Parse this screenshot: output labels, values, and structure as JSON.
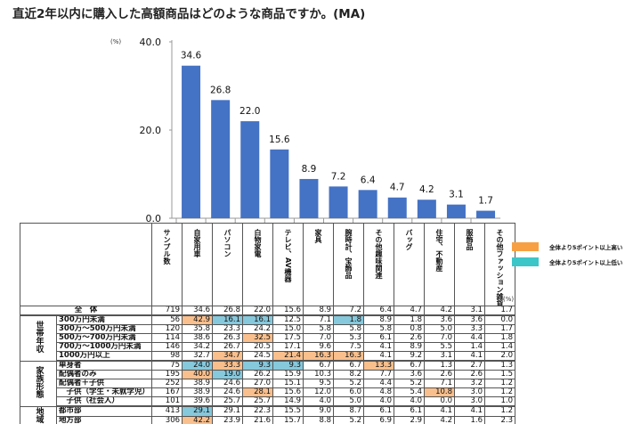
{
  "title": "直近2年以内に購入した高額商品はどのような商品ですか。(MA)",
  "unit": "(%)",
  "colors": {
    "bar": "#4472c4",
    "higher": "#f7a043",
    "lower": "#3cc6c8",
    "cell_higher": "#f9bf8c",
    "cell_lower": "#86c8dc"
  },
  "legend": [
    {
      "label": "全体より5ポイント以上高い",
      "color": "#f7a043"
    },
    {
      "label": "全体より5ポイント以上低い",
      "color": "#3cc6c8"
    }
  ],
  "chart_data": {
    "type": "bar",
    "categories": [
      "自家用車",
      "パソコン",
      "白物家電",
      "テレビ、AV機器",
      "家具",
      "腕時計、宝飾品",
      "その他趣味関連",
      "バッグ",
      "住宅、不動産",
      "服飾品",
      "その他ファッション雑貨"
    ],
    "values": [
      34.6,
      26.8,
      22.0,
      15.6,
      8.9,
      7.2,
      6.4,
      4.7,
      4.2,
      3.1,
      1.7
    ],
    "ylim": [
      0,
      40
    ],
    "yticks": [
      "0.0",
      "20.0",
      "40.0"
    ],
    "data_labels": [
      "34.6",
      "26.8",
      "22.0",
      "15.6",
      "8.9",
      "7.2",
      "6.4",
      "4.7",
      "4.2",
      "3.1",
      "1.7"
    ]
  },
  "table": {
    "sample_header": "サンプル数",
    "total": {
      "label": "全　体",
      "n": "719",
      "values": [
        "34.6",
        "26.8",
        "22.0",
        "15.6",
        "8.9",
        "7.2",
        "6.4",
        "4.7",
        "4.2",
        "3.1",
        "1.7"
      ]
    },
    "groups": [
      {
        "label": "世帯年収",
        "rows": [
          {
            "label": "300万円未満",
            "n": "56",
            "values": [
              "42.9",
              "16.1",
              "16.1",
              "12.5",
              "7.1",
              "1.8",
              "8.9",
              "1.8",
              "3.6",
              "3.6",
              "0.0"
            ],
            "hl": [
              "o",
              "b",
              "b",
              "",
              "",
              "b",
              "",
              "",
              "",
              "",
              ""
            ]
          },
          {
            "label": "300万～500万円未満",
            "n": "120",
            "values": [
              "35.8",
              "23.3",
              "24.2",
              "15.0",
              "5.8",
              "5.8",
              "5.8",
              "0.8",
              "5.0",
              "3.3",
              "1.7"
            ],
            "hl": [
              "",
              "",
              "",
              "",
              "",
              "",
              "",
              "",
              "",
              "",
              ""
            ]
          },
          {
            "label": "500万～700万円未満",
            "n": "114",
            "values": [
              "38.6",
              "26.3",
              "32.5",
              "17.5",
              "7.0",
              "5.3",
              "6.1",
              "2.6",
              "7.0",
              "4.4",
              "1.8"
            ],
            "hl": [
              "",
              "",
              "o",
              "",
              "",
              "",
              "",
              "",
              "",
              "",
              ""
            ]
          },
          {
            "label": "700万～1000万円未満",
            "n": "146",
            "values": [
              "34.2",
              "26.7",
              "20.5",
              "17.1",
              "9.6",
              "7.5",
              "4.1",
              "8.9",
              "5.5",
              "1.4",
              "1.4"
            ],
            "hl": [
              "",
              "",
              "",
              "",
              "",
              "",
              "",
              "",
              "",
              "",
              ""
            ]
          },
          {
            "label": "1000万円以上",
            "n": "98",
            "values": [
              "32.7",
              "34.7",
              "24.5",
              "21.4",
              "16.3",
              "16.3",
              "4.1",
              "9.2",
              "3.1",
              "4.1",
              "2.0"
            ],
            "hl": [
              "",
              "o",
              "",
              "o",
              "o",
              "o",
              "",
              "",
              "",
              "",
              ""
            ]
          }
        ]
      },
      {
        "label": "家族形態",
        "rows": [
          {
            "label": "単身者",
            "n": "75",
            "values": [
              "24.0",
              "33.3",
              "9.3",
              "9.3",
              "6.7",
              "6.7",
              "13.3",
              "6.7",
              "1.3",
              "2.7",
              "1.3"
            ],
            "hl": [
              "b",
              "o",
              "b",
              "b",
              "",
              "",
              "o",
              "",
              "",
              "",
              ""
            ]
          },
          {
            "label": "配偶者のみ",
            "n": "195",
            "values": [
              "40.0",
              "19.0",
              "26.2",
              "15.9",
              "10.3",
              "8.2",
              "7.7",
              "3.6",
              "2.6",
              "2.6",
              "1.5"
            ],
            "hl": [
              "o",
              "b",
              "",
              "",
              "",
              "",
              "",
              "",
              "",
              "",
              ""
            ]
          },
          {
            "label": "配偶者＋子供",
            "n": "252",
            "values": [
              "38.9",
              "24.6",
              "27.0",
              "15.1",
              "9.5",
              "5.2",
              "4.4",
              "5.2",
              "7.1",
              "3.2",
              "1.2"
            ],
            "hl": [
              "",
              "",
              "",
              "",
              "",
              "",
              "",
              "",
              "",
              "",
              ""
            ]
          },
          {
            "label": "　子供（学生・未就学児）",
            "n": "167",
            "values": [
              "38.9",
              "24.6",
              "28.1",
              "15.6",
              "12.0",
              "6.0",
              "4.8",
              "5.4",
              "10.8",
              "3.0",
              "1.2"
            ],
            "hl": [
              "",
              "",
              "o",
              "",
              "",
              "",
              "",
              "",
              "o",
              "",
              ""
            ]
          },
          {
            "label": "　子供（社会人）",
            "n": "101",
            "values": [
              "39.6",
              "25.7",
              "25.7",
              "14.9",
              "4.0",
              "5.0",
              "4.0",
              "4.0",
              "0.0",
              "3.0",
              "1.0"
            ],
            "hl": [
              "",
              "",
              "",
              "",
              "",
              "",
              "",
              "",
              "",
              "",
              ""
            ]
          }
        ]
      },
      {
        "label": "地域",
        "rows": [
          {
            "label": "都市部",
            "n": "413",
            "values": [
              "29.1",
              "29.1",
              "22.3",
              "15.5",
              "9.0",
              "8.7",
              "6.1",
              "6.1",
              "4.1",
              "4.1",
              "1.2"
            ],
            "hl": [
              "b",
              "",
              "",
              "",
              "",
              "",
              "",
              "",
              "",
              "",
              ""
            ]
          },
          {
            "label": "地方部",
            "n": "306",
            "values": [
              "42.2",
              "23.9",
              "21.6",
              "15.7",
              "8.8",
              "5.2",
              "6.9",
              "2.9",
              "4.2",
              "1.6",
              "2.3"
            ],
            "hl": [
              "o",
              "",
              "",
              "",
              "",
              "",
              "",
              "",
              "",
              "",
              ""
            ]
          }
        ]
      }
    ]
  }
}
